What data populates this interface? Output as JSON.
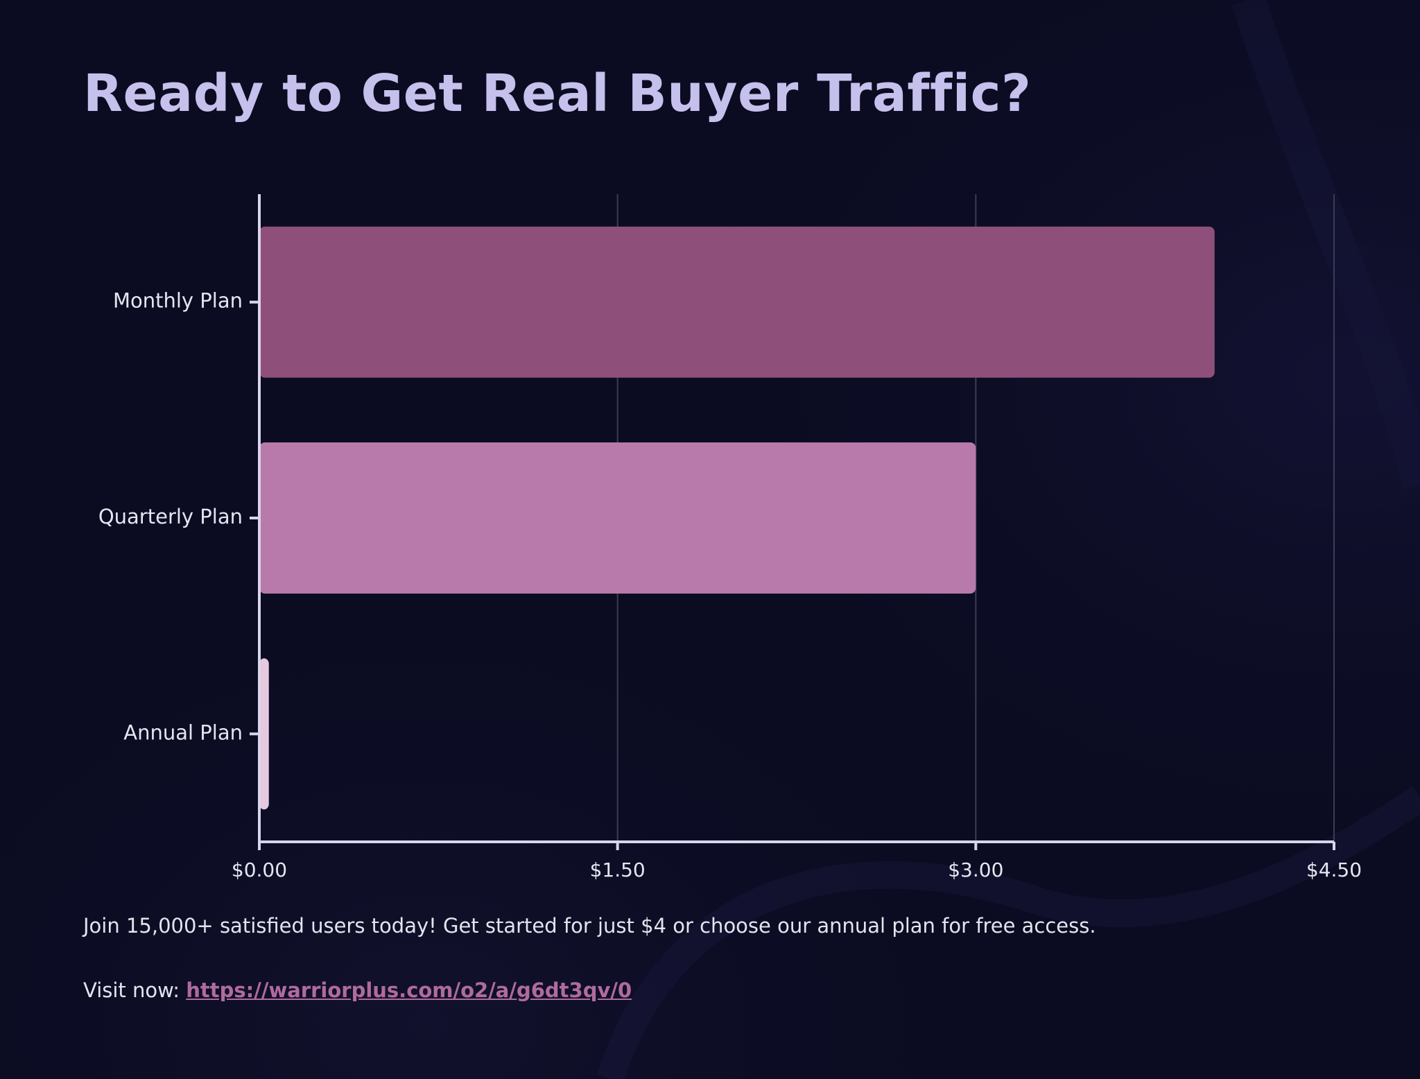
{
  "title": "Ready to Get Real Buyer Traffic?",
  "footer": {
    "description": "Join 15,000+ satisfied users today! Get started for just $4 or choose our annual plan for free access.",
    "visit_prefix": "Visit now: ",
    "visit_url": "https://warriorplus.com/o2/a/g6dt3qv/0"
  },
  "colors": {
    "background": "#0b0c22",
    "title": "#c6c0ec",
    "link": "#b06b9e",
    "axis": "#d8d6ec",
    "grid": "#3b3d55"
  },
  "chart_data": {
    "type": "bar",
    "orientation": "horizontal",
    "categories": [
      "Monthly Plan",
      "Quarterly Plan",
      "Annual Plan"
    ],
    "values": [
      4,
      3,
      0.04
    ],
    "bar_colors": [
      "#8f4f7b",
      "#b87aab",
      "#e6c8df"
    ],
    "xlim": [
      0,
      4.5
    ],
    "x_ticks": [
      "$0.00",
      "$1.50",
      "$3.00",
      "$4.50"
    ],
    "x_tick_values": [
      0,
      1.5,
      3,
      4.5
    ],
    "grid": "vertical",
    "legend": "none"
  }
}
